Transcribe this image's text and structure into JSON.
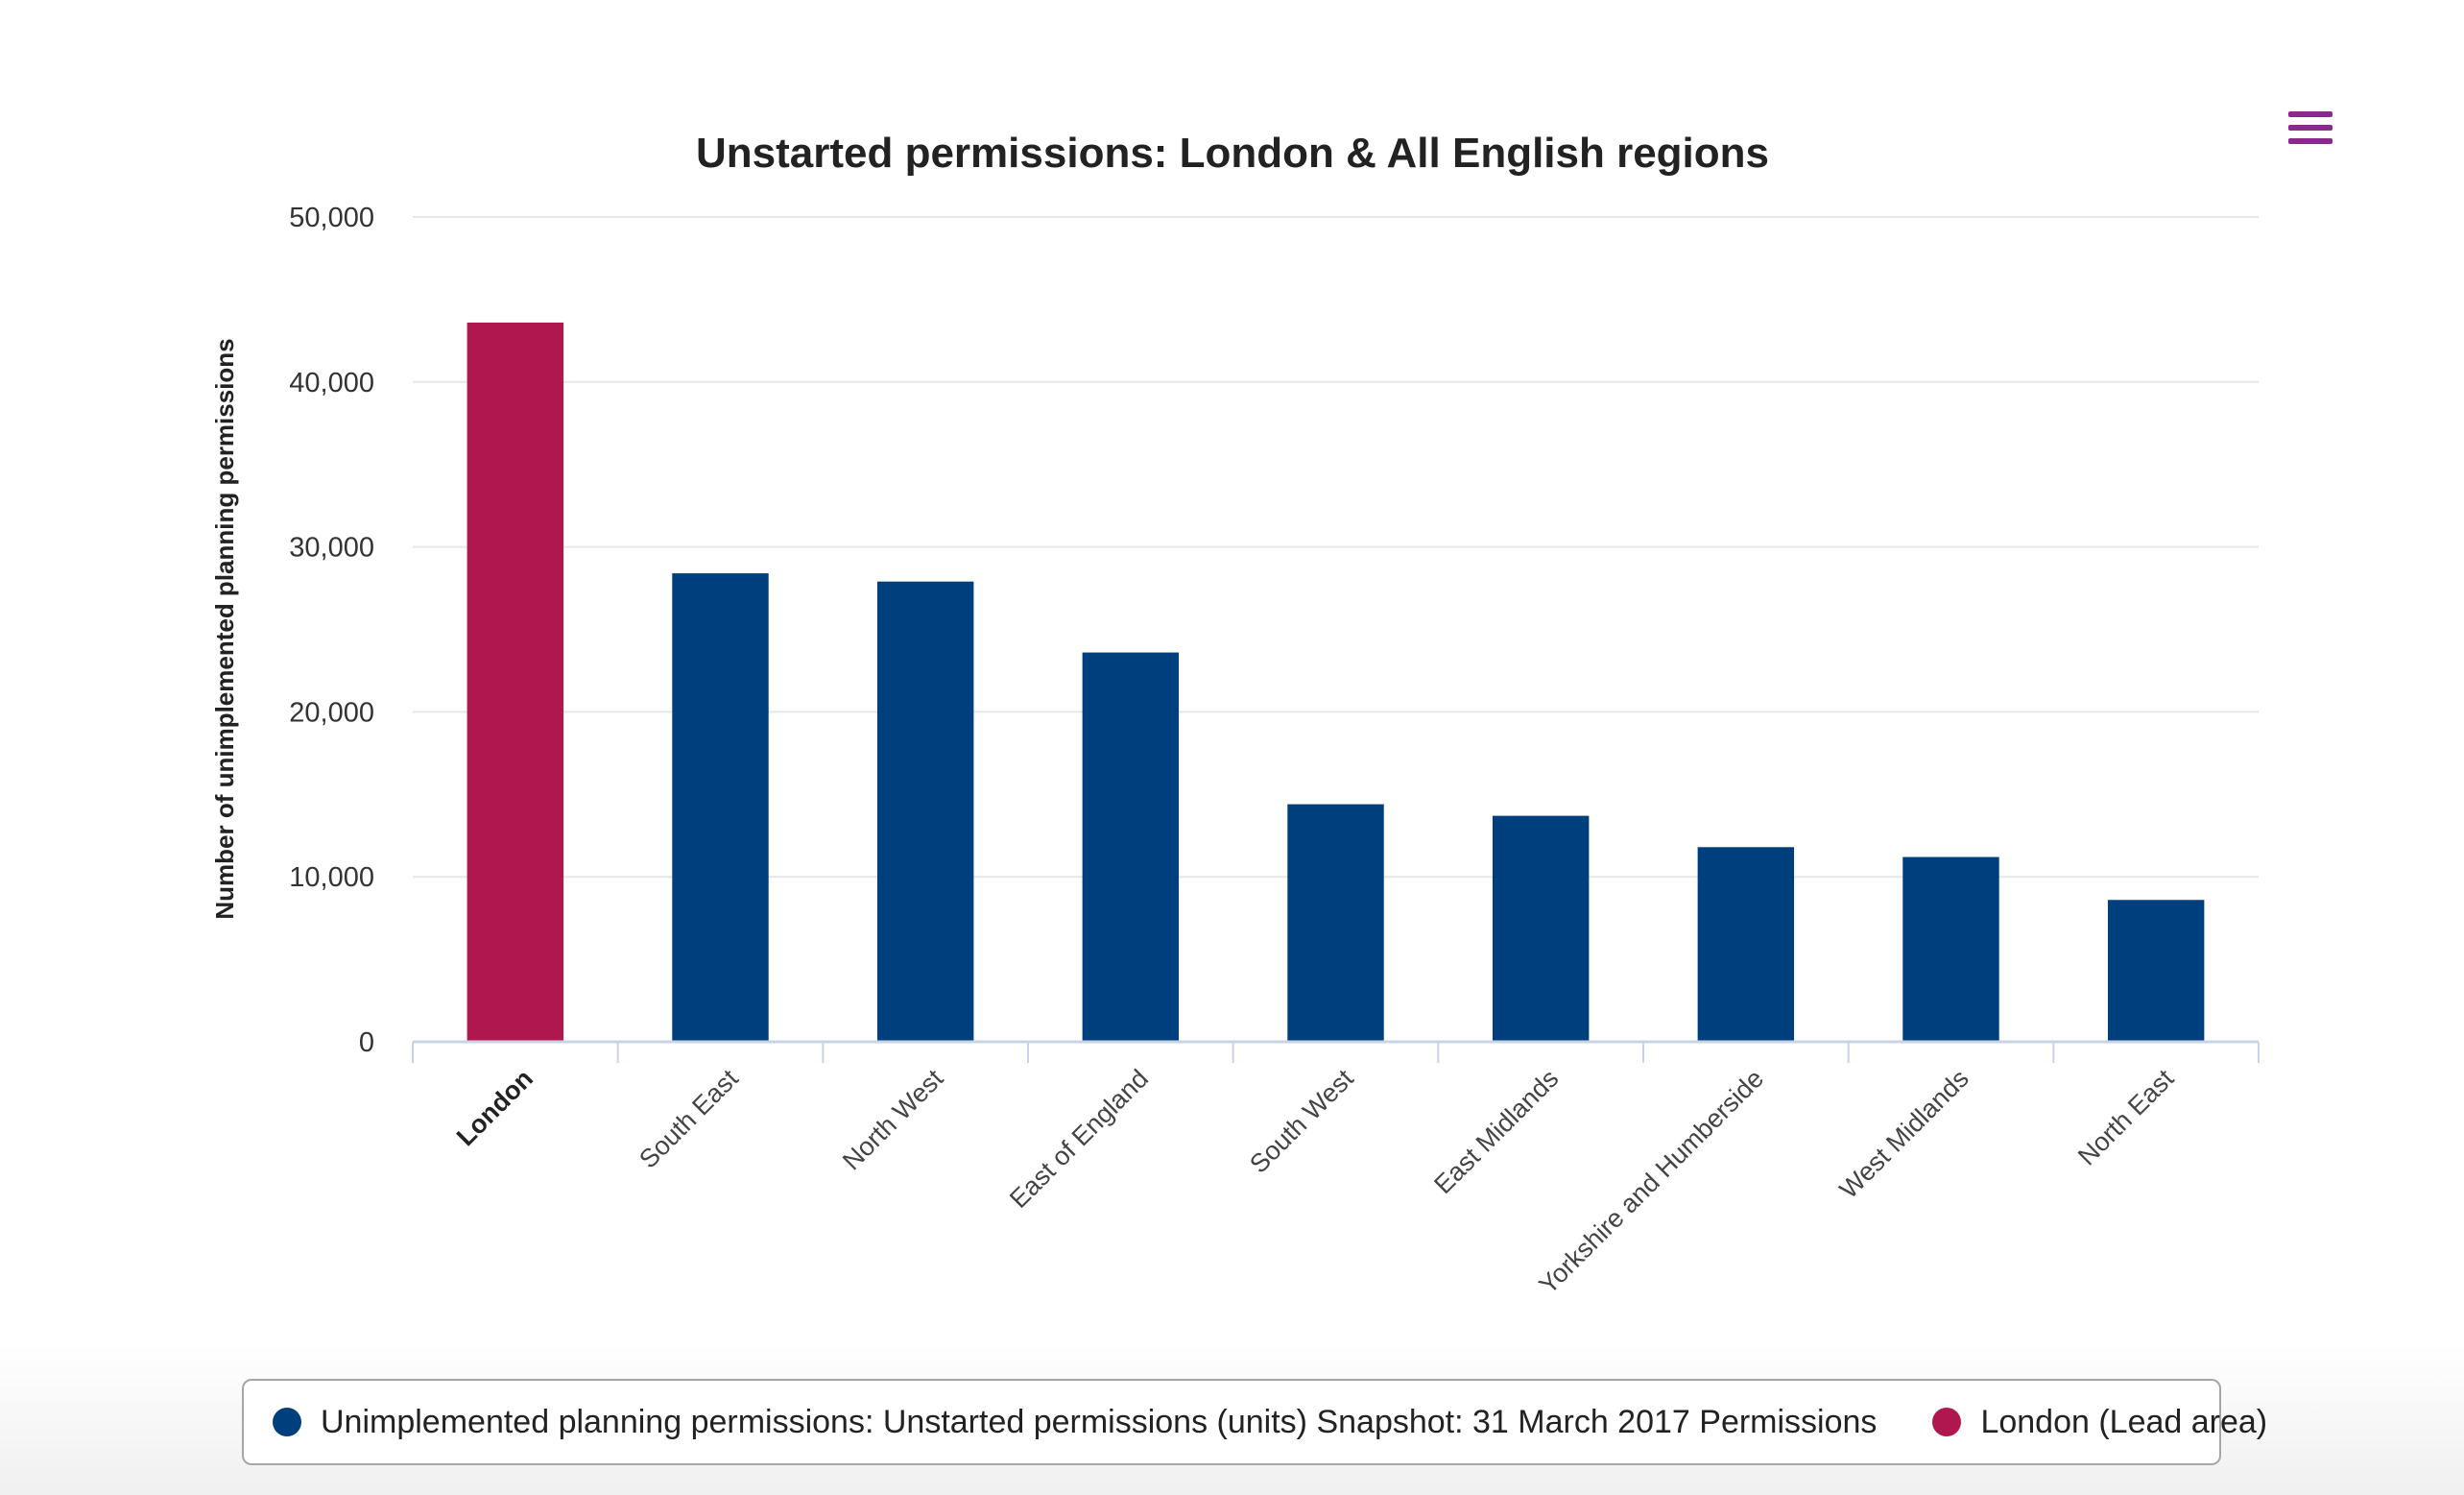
{
  "menu": {
    "icon": "hamburger-menu-icon"
  },
  "chart_data": {
    "type": "bar",
    "title": "Unstarted permissions: London & All English regions",
    "ylabel": "Number of unimplemented planning permissions",
    "xlabel": "",
    "ylim": [
      0,
      50000
    ],
    "yticks": [
      0,
      10000,
      20000,
      30000,
      40000,
      50000
    ],
    "ytick_labels": [
      "0",
      "10,000",
      "20,000",
      "30,000",
      "40,000",
      "50,000"
    ],
    "grid": true,
    "legend_position": "bottom",
    "categories": [
      "London",
      "South East",
      "North West",
      "East of England",
      "South West",
      "East Midlands",
      "Yorkshire and Humberside",
      "West Midlands",
      "North East"
    ],
    "values": [
      43600,
      28400,
      27900,
      23600,
      14400,
      13700,
      11800,
      11200,
      8600
    ],
    "highlight_index": 0,
    "colors": {
      "series": "#003f7d",
      "lead": "#b0174f",
      "grid": "#e6e6e6",
      "axis": "#c8d4e6"
    },
    "legend": [
      {
        "label": "Unimplemented planning permissions: Unstarted permissions (units) Snapshot: 31 March 2017 Permissions",
        "color": "#003f7d"
      },
      {
        "label": "London (Lead area)",
        "color": "#b0174f"
      }
    ]
  }
}
